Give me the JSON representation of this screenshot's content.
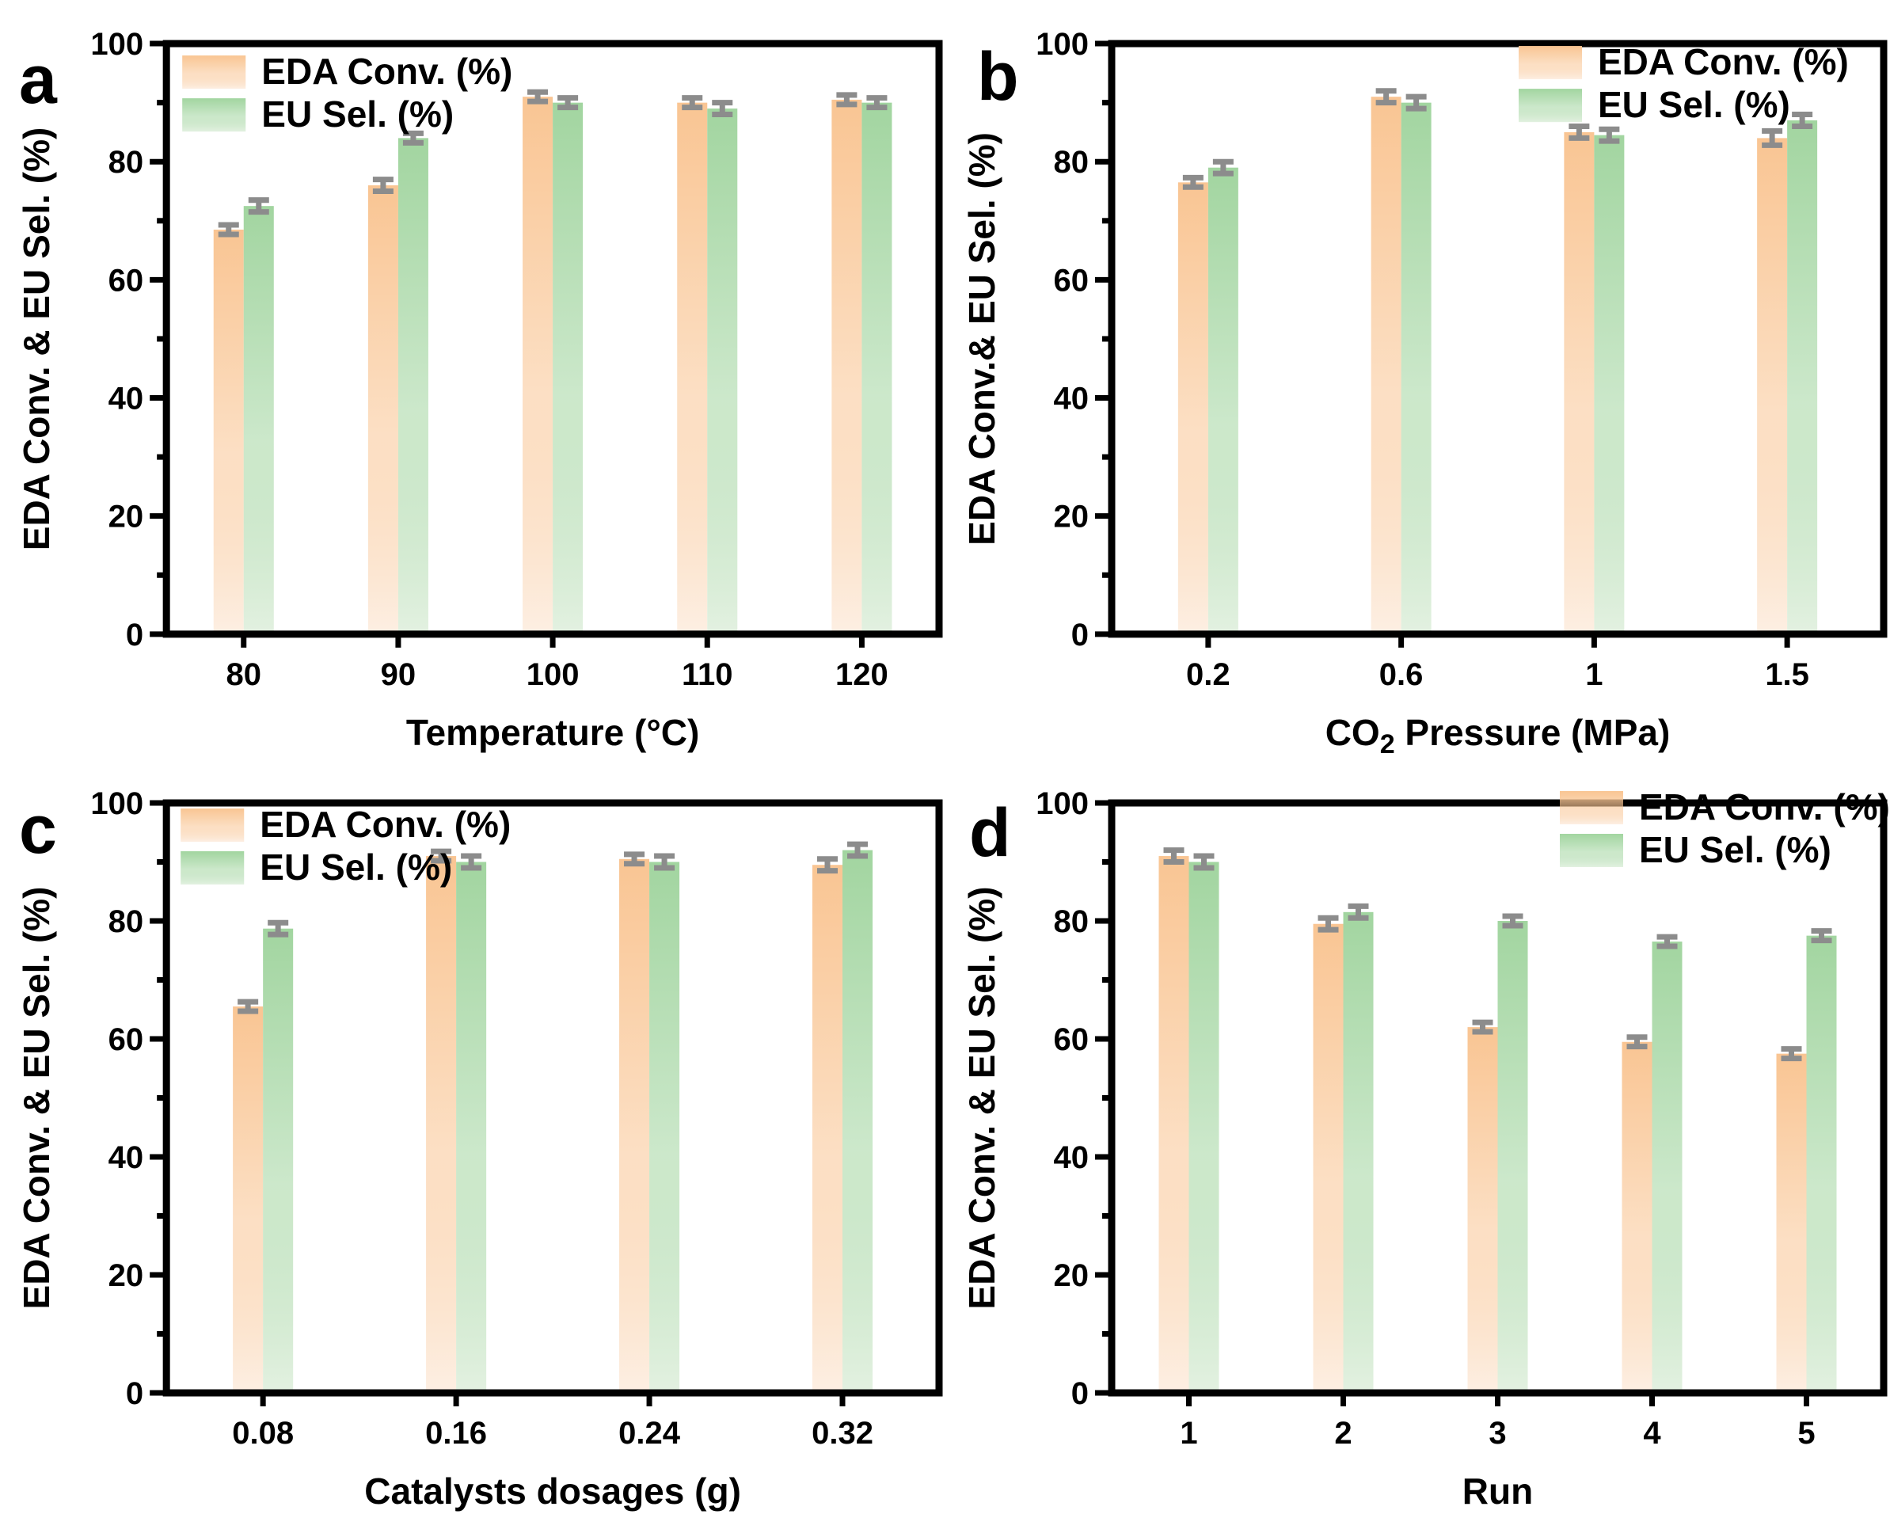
{
  "figure": {
    "background": "#FFFFFF",
    "colors": {
      "eda_top": "#F9C593",
      "eda_bottom": "#FDEFE3",
      "eu_top": "#A2D5A0",
      "eu_bottom": "#E3F1E1",
      "error_bar": "#8C8C8C",
      "axis": "#000000",
      "text": "#000000"
    },
    "legend_labels": [
      "EDA Conv. (%)",
      "EU Sel. (%)"
    ]
  },
  "chart_data": [
    {
      "type": "bar",
      "panel_label": "a",
      "xlabel_parts": [
        {
          "t": "Temperature (°C)"
        }
      ],
      "ylabel": "EDA Conv. & EU Sel. (%)",
      "categories": [
        "80",
        "90",
        "100",
        "110",
        "120"
      ],
      "ylim": [
        0,
        100
      ],
      "ytick_major": [
        0,
        20,
        40,
        60,
        80,
        100
      ],
      "ytick_minor": [
        10,
        30,
        50,
        70,
        90
      ],
      "grid": false,
      "legend_position": "top-left",
      "series": [
        {
          "name": "EDA Conv. (%)",
          "values": [
            68.5,
            76,
            91,
            90,
            90.5
          ],
          "errors": [
            0.8,
            1.0,
            0.8,
            0.8,
            0.8
          ]
        },
        {
          "name": "EU Sel. (%)",
          "values": [
            72.5,
            84,
            90,
            89,
            90
          ],
          "errors": [
            1.0,
            0.8,
            0.8,
            1.0,
            0.8
          ]
        }
      ]
    },
    {
      "type": "bar",
      "panel_label": "b",
      "xlabel_parts": [
        {
          "t": "CO"
        },
        {
          "t": "2",
          "sub": true
        },
        {
          "t": " Pressure (MPa)"
        }
      ],
      "ylabel": "EDA Conv.& EU Sel. (%)",
      "categories": [
        "0.2",
        "0.6",
        "1",
        "1.5"
      ],
      "ylim": [
        0,
        100
      ],
      "ytick_major": [
        0,
        20,
        40,
        60,
        80,
        100
      ],
      "ytick_minor": [
        10,
        30,
        50,
        70,
        90
      ],
      "grid": false,
      "legend_position": "top-right",
      "series": [
        {
          "name": "EDA Conv. (%)",
          "values": [
            76.5,
            91,
            85,
            84
          ],
          "errors": [
            0.8,
            1.0,
            1.0,
            1.2
          ]
        },
        {
          "name": "EU Sel. (%)",
          "values": [
            79,
            90,
            84.5,
            87
          ],
          "errors": [
            1.0,
            1.0,
            1.0,
            1.0
          ]
        }
      ]
    },
    {
      "type": "bar",
      "panel_label": "c",
      "xlabel_parts": [
        {
          "t": "Catalysts dosages (g)"
        }
      ],
      "ylabel": "EDA Conv. & EU Sel. (%)",
      "categories": [
        "0.08",
        "0.16",
        "0.24",
        "0.32"
      ],
      "ylim": [
        0,
        100
      ],
      "ytick_major": [
        0,
        20,
        40,
        60,
        80,
        100
      ],
      "ytick_minor": [
        10,
        30,
        50,
        70,
        90
      ],
      "grid": false,
      "legend_position": "top-left",
      "series": [
        {
          "name": "EDA Conv. (%)",
          "values": [
            65.5,
            91,
            90.5,
            89.5
          ],
          "errors": [
            0.8,
            0.8,
            0.8,
            1.0
          ]
        },
        {
          "name": "EU Sel. (%)",
          "values": [
            78.7,
            90,
            90,
            92
          ],
          "errors": [
            1.0,
            1.0,
            1.0,
            1.0
          ]
        }
      ]
    },
    {
      "type": "bar",
      "panel_label": "d",
      "xlabel_parts": [
        {
          "t": "Run"
        }
      ],
      "ylabel": "EDA Conv. & EU Sel. (%)",
      "categories": [
        "1",
        "2",
        "3",
        "4",
        "5"
      ],
      "ylim": [
        0,
        100
      ],
      "ytick_major": [
        0,
        20,
        40,
        60,
        80,
        100
      ],
      "ytick_minor": [
        10,
        30,
        50,
        70,
        90
      ],
      "grid": false,
      "legend_position": "top-right",
      "series": [
        {
          "name": "EDA Conv. (%)",
          "values": [
            91,
            79.5,
            62,
            59.5,
            57.5
          ],
          "errors": [
            1.0,
            1.0,
            0.8,
            0.8,
            0.8
          ]
        },
        {
          "name": "EU Sel. (%)",
          "values": [
            90,
            81.5,
            80,
            76.5,
            77.5
          ],
          "errors": [
            1.0,
            1.0,
            0.8,
            0.8,
            0.8
          ]
        }
      ]
    }
  ]
}
